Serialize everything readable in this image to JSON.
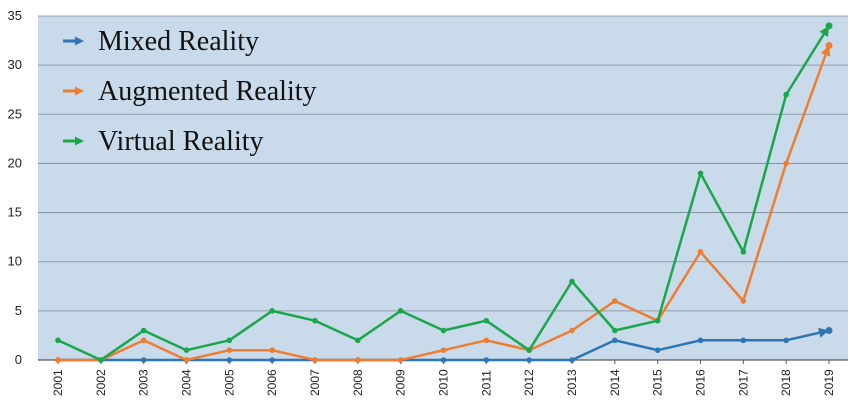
{
  "chart_data": {
    "type": "line",
    "title": "",
    "xlabel": "",
    "ylabel": "",
    "x": [
      "2001",
      "2002",
      "2003",
      "2004",
      "2005",
      "2006",
      "2007",
      "2008",
      "2009",
      "2010",
      "2011",
      "2012",
      "2013",
      "2014",
      "2015",
      "2016",
      "2017",
      "2018",
      "2019"
    ],
    "ylim": [
      0,
      35
    ],
    "yticks": [
      "0",
      "5",
      "10",
      "15",
      "20",
      "25",
      "30",
      "35"
    ],
    "grid": "horizontal",
    "legend_position": "top-left",
    "background_color": "#c9dbeb",
    "series": [
      {
        "name": "Mixed Reality",
        "color": "#2e75b6",
        "values": [
          0,
          0,
          0,
          0,
          0,
          0,
          0,
          0,
          0,
          0,
          0,
          0,
          0,
          2,
          1,
          2,
          2,
          2,
          3
        ]
      },
      {
        "name": "Augmented Reality",
        "color": "#ed7d31",
        "values": [
          0,
          0,
          2,
          0,
          1,
          1,
          0,
          0,
          0,
          1,
          2,
          1,
          3,
          6,
          4,
          11,
          6,
          20,
          32
        ]
      },
      {
        "name": "Virtual Reality",
        "color": "#1aa64a",
        "values": [
          2,
          0,
          3,
          1,
          2,
          5,
          4,
          2,
          5,
          3,
          4,
          1,
          8,
          3,
          4,
          19,
          11,
          27,
          34
        ]
      }
    ]
  }
}
